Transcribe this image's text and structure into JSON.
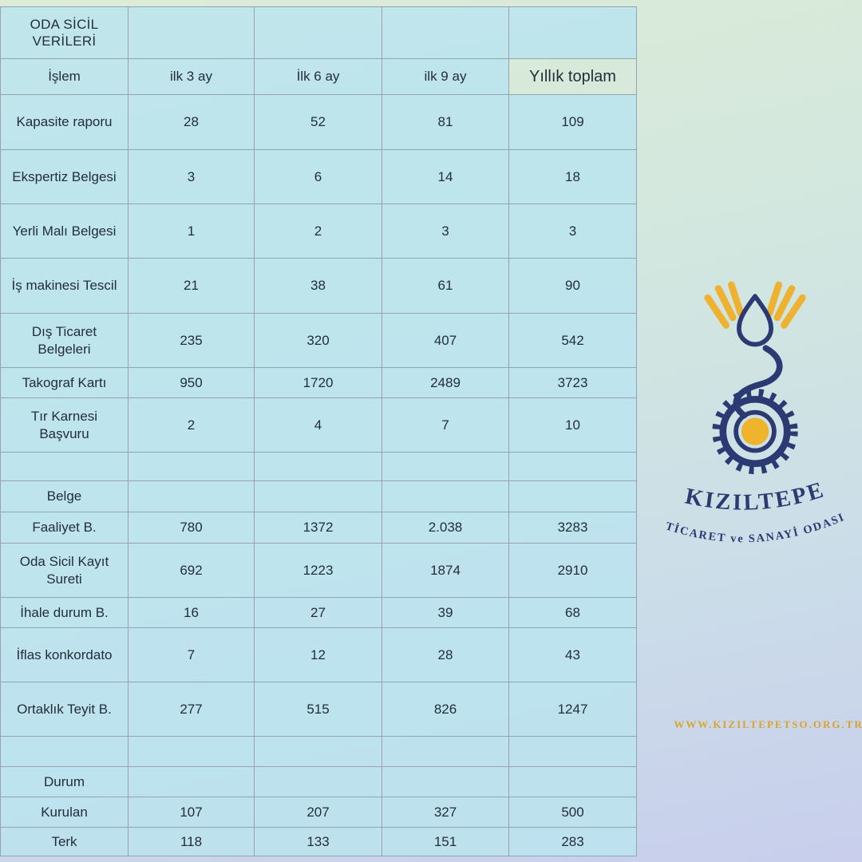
{
  "chart_data": {
    "type": "table",
    "title": "ODA SİCİL VERİLERİ",
    "columns": [
      "İşlem",
      "ilk 3 ay",
      "İlk 6 ay",
      "ilk 9 ay",
      "Yıllık toplam"
    ],
    "rows": [
      {
        "label": "Kapasite raporu",
        "values": [
          "28",
          "52",
          "81",
          "109"
        ]
      },
      {
        "label": "Ekspertiz Belgesi",
        "values": [
          "3",
          "6",
          "14",
          "18"
        ]
      },
      {
        "label": "Yerli Malı Belgesi",
        "values": [
          "1",
          "2",
          "3",
          "3"
        ]
      },
      {
        "label": "İş makinesi Tescil",
        "values": [
          "21",
          "38",
          "61",
          "90"
        ]
      },
      {
        "label": "Dış Ticaret Belgeleri",
        "values": [
          "235",
          "320",
          "407",
          "542"
        ]
      },
      {
        "label": "Takograf Kartı",
        "values": [
          "950",
          "1720",
          "2489",
          "3723"
        ]
      },
      {
        "label": "Tır Karnesi Başvuru",
        "values": [
          "2",
          "4",
          "7",
          "10"
        ]
      },
      {
        "label": "",
        "values": [
          "",
          "",
          "",
          ""
        ]
      },
      {
        "label": "Belge",
        "values": [
          "",
          "",
          "",
          ""
        ]
      },
      {
        "label": "Faaliyet B.",
        "values": [
          "780",
          "1372",
          "2.038",
          "3283"
        ]
      },
      {
        "label": "Oda Sicil Kayıt Sureti",
        "values": [
          "692",
          "1223",
          "1874",
          "2910"
        ]
      },
      {
        "label": "İhale durum B.",
        "values": [
          "16",
          "27",
          "39",
          "68"
        ]
      },
      {
        "label": "İflas konkordato",
        "values": [
          "7",
          "12",
          "28",
          "43"
        ]
      },
      {
        "label": "Ortaklık Teyit B.",
        "values": [
          "277",
          "515",
          "826",
          "1247"
        ]
      },
      {
        "label": "",
        "values": [
          "",
          "",
          "",
          ""
        ]
      },
      {
        "label": "Durum",
        "values": [
          "",
          "",
          "",
          ""
        ]
      },
      {
        "label": "Kurulan",
        "values": [
          "107",
          "207",
          "327",
          "500"
        ]
      },
      {
        "label": "Terk",
        "values": [
          "118",
          "133",
          "151",
          "283"
        ]
      }
    ]
  },
  "logo": {
    "name": "KIZILTEPE",
    "subtitle": "TİCARET ve SANAYİ ODASI"
  },
  "footer": {
    "website": "WWW.KIZILTEPETSO.ORG.TR"
  },
  "colors": {
    "navy": "#2b3a72",
    "gold": "#efb230",
    "cell_blue": "#bce4ef",
    "border_gray": "#94a3ae",
    "text_dark": "#232e3a",
    "website_gold": "#dba32d"
  }
}
